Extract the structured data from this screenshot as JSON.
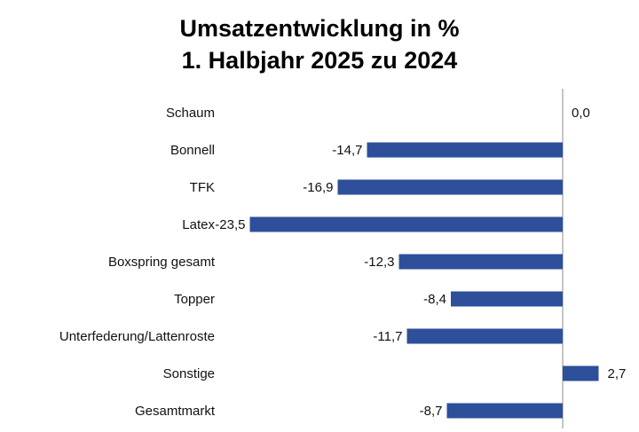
{
  "chart_data": {
    "type": "bar",
    "orientation": "horizontal",
    "title": "Umsatzentwicklung in %",
    "subtitle": "1. Halbjahr 2025 zu 2024",
    "xlabel": "",
    "ylabel": "",
    "categories": [
      "Schaum",
      "Bonnell",
      "TFK",
      "Latex",
      "Boxspring gesamt",
      "Topper",
      "Unterfederung/Lattenroste",
      "Sonstige",
      "Gesamtmarkt"
    ],
    "values": [
      0.0,
      -14.7,
      -16.9,
      -23.5,
      -12.3,
      -8.4,
      -11.7,
      2.7,
      -8.7
    ],
    "value_labels": [
      "0,0",
      "-14,7",
      "-16,9",
      "-23,5",
      "-12,3",
      "-8,4",
      "-11,7",
      "2,7",
      "-8,7"
    ],
    "xlim": [
      -23.5,
      2.7
    ],
    "grid": false,
    "legend": "none",
    "bar_color": "#2e4f9a"
  }
}
